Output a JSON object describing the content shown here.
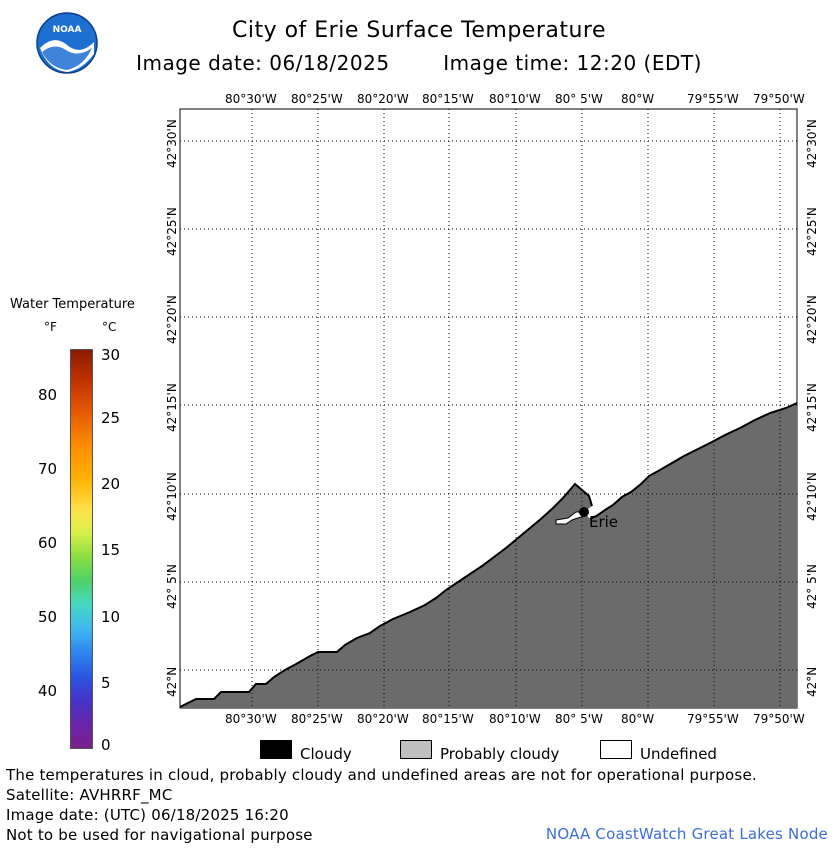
{
  "title": "City of Erie Surface Temperature",
  "image_date_label": "Image date: 06/18/2025",
  "image_time_label": "Image time: 12:20 (EDT)",
  "logo_text": "NOAA",
  "longitude_labels": [
    "80°30'W",
    "80°25'W",
    "80°20'W",
    "80°15'W",
    "80°10'W",
    "80° 5'W",
    "80°W",
    "79°55'W",
    "79°50'W"
  ],
  "latitude_labels": [
    "42°30'N",
    "42°25'N",
    "42°20'N",
    "42°15'N",
    "42°10'N",
    "42° 5'N",
    "42°N"
  ],
  "city_label": "Erie",
  "colorbar": {
    "title": "Water Temperature",
    "unit_f": "°F",
    "unit_c": "°C",
    "f_ticks": [
      "80",
      "70",
      "60",
      "50",
      "40"
    ],
    "c_ticks": [
      "30",
      "25",
      "20",
      "15",
      "10",
      "5",
      "0"
    ]
  },
  "legend": [
    {
      "label": "Cloudy",
      "color": "#000000"
    },
    {
      "label": "Probably cloudy",
      "color": "#bfbfbf"
    },
    {
      "label": "Undefined",
      "color": "#ffffff"
    }
  ],
  "footer": {
    "disclaimer": "The temperatures in cloud, probably cloudy and undefined areas are not for operational purpose.",
    "satellite": "Satellite: AVHRRF_MC",
    "utc_date": "Image date: (UTC) 06/18/2025  16:20",
    "navigation": "Not to be used for navigational purpose",
    "credit": "NOAA CoastWatch Great Lakes Node"
  },
  "colors": {
    "land": "#6b6b6b",
    "water": "#ffffff",
    "grid": "#000000"
  }
}
